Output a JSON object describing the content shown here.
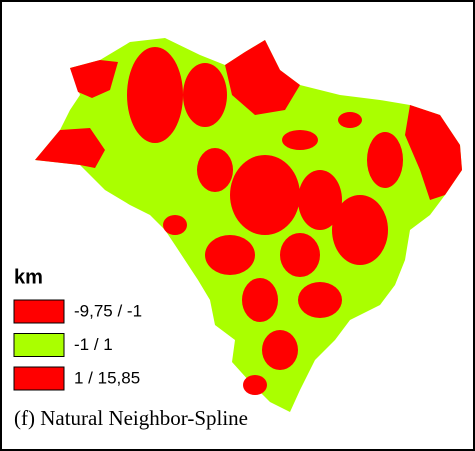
{
  "legend": {
    "title": "km",
    "items": [
      {
        "label": "-9,75 / -1",
        "color": "#ff0000"
      },
      {
        "label": "-1 / 1",
        "color": "#aaff00"
      },
      {
        "label": "1 / 15,85",
        "color": "#ff0000"
      }
    ]
  },
  "caption": "(f) Natural Neighbor-Spline"
}
